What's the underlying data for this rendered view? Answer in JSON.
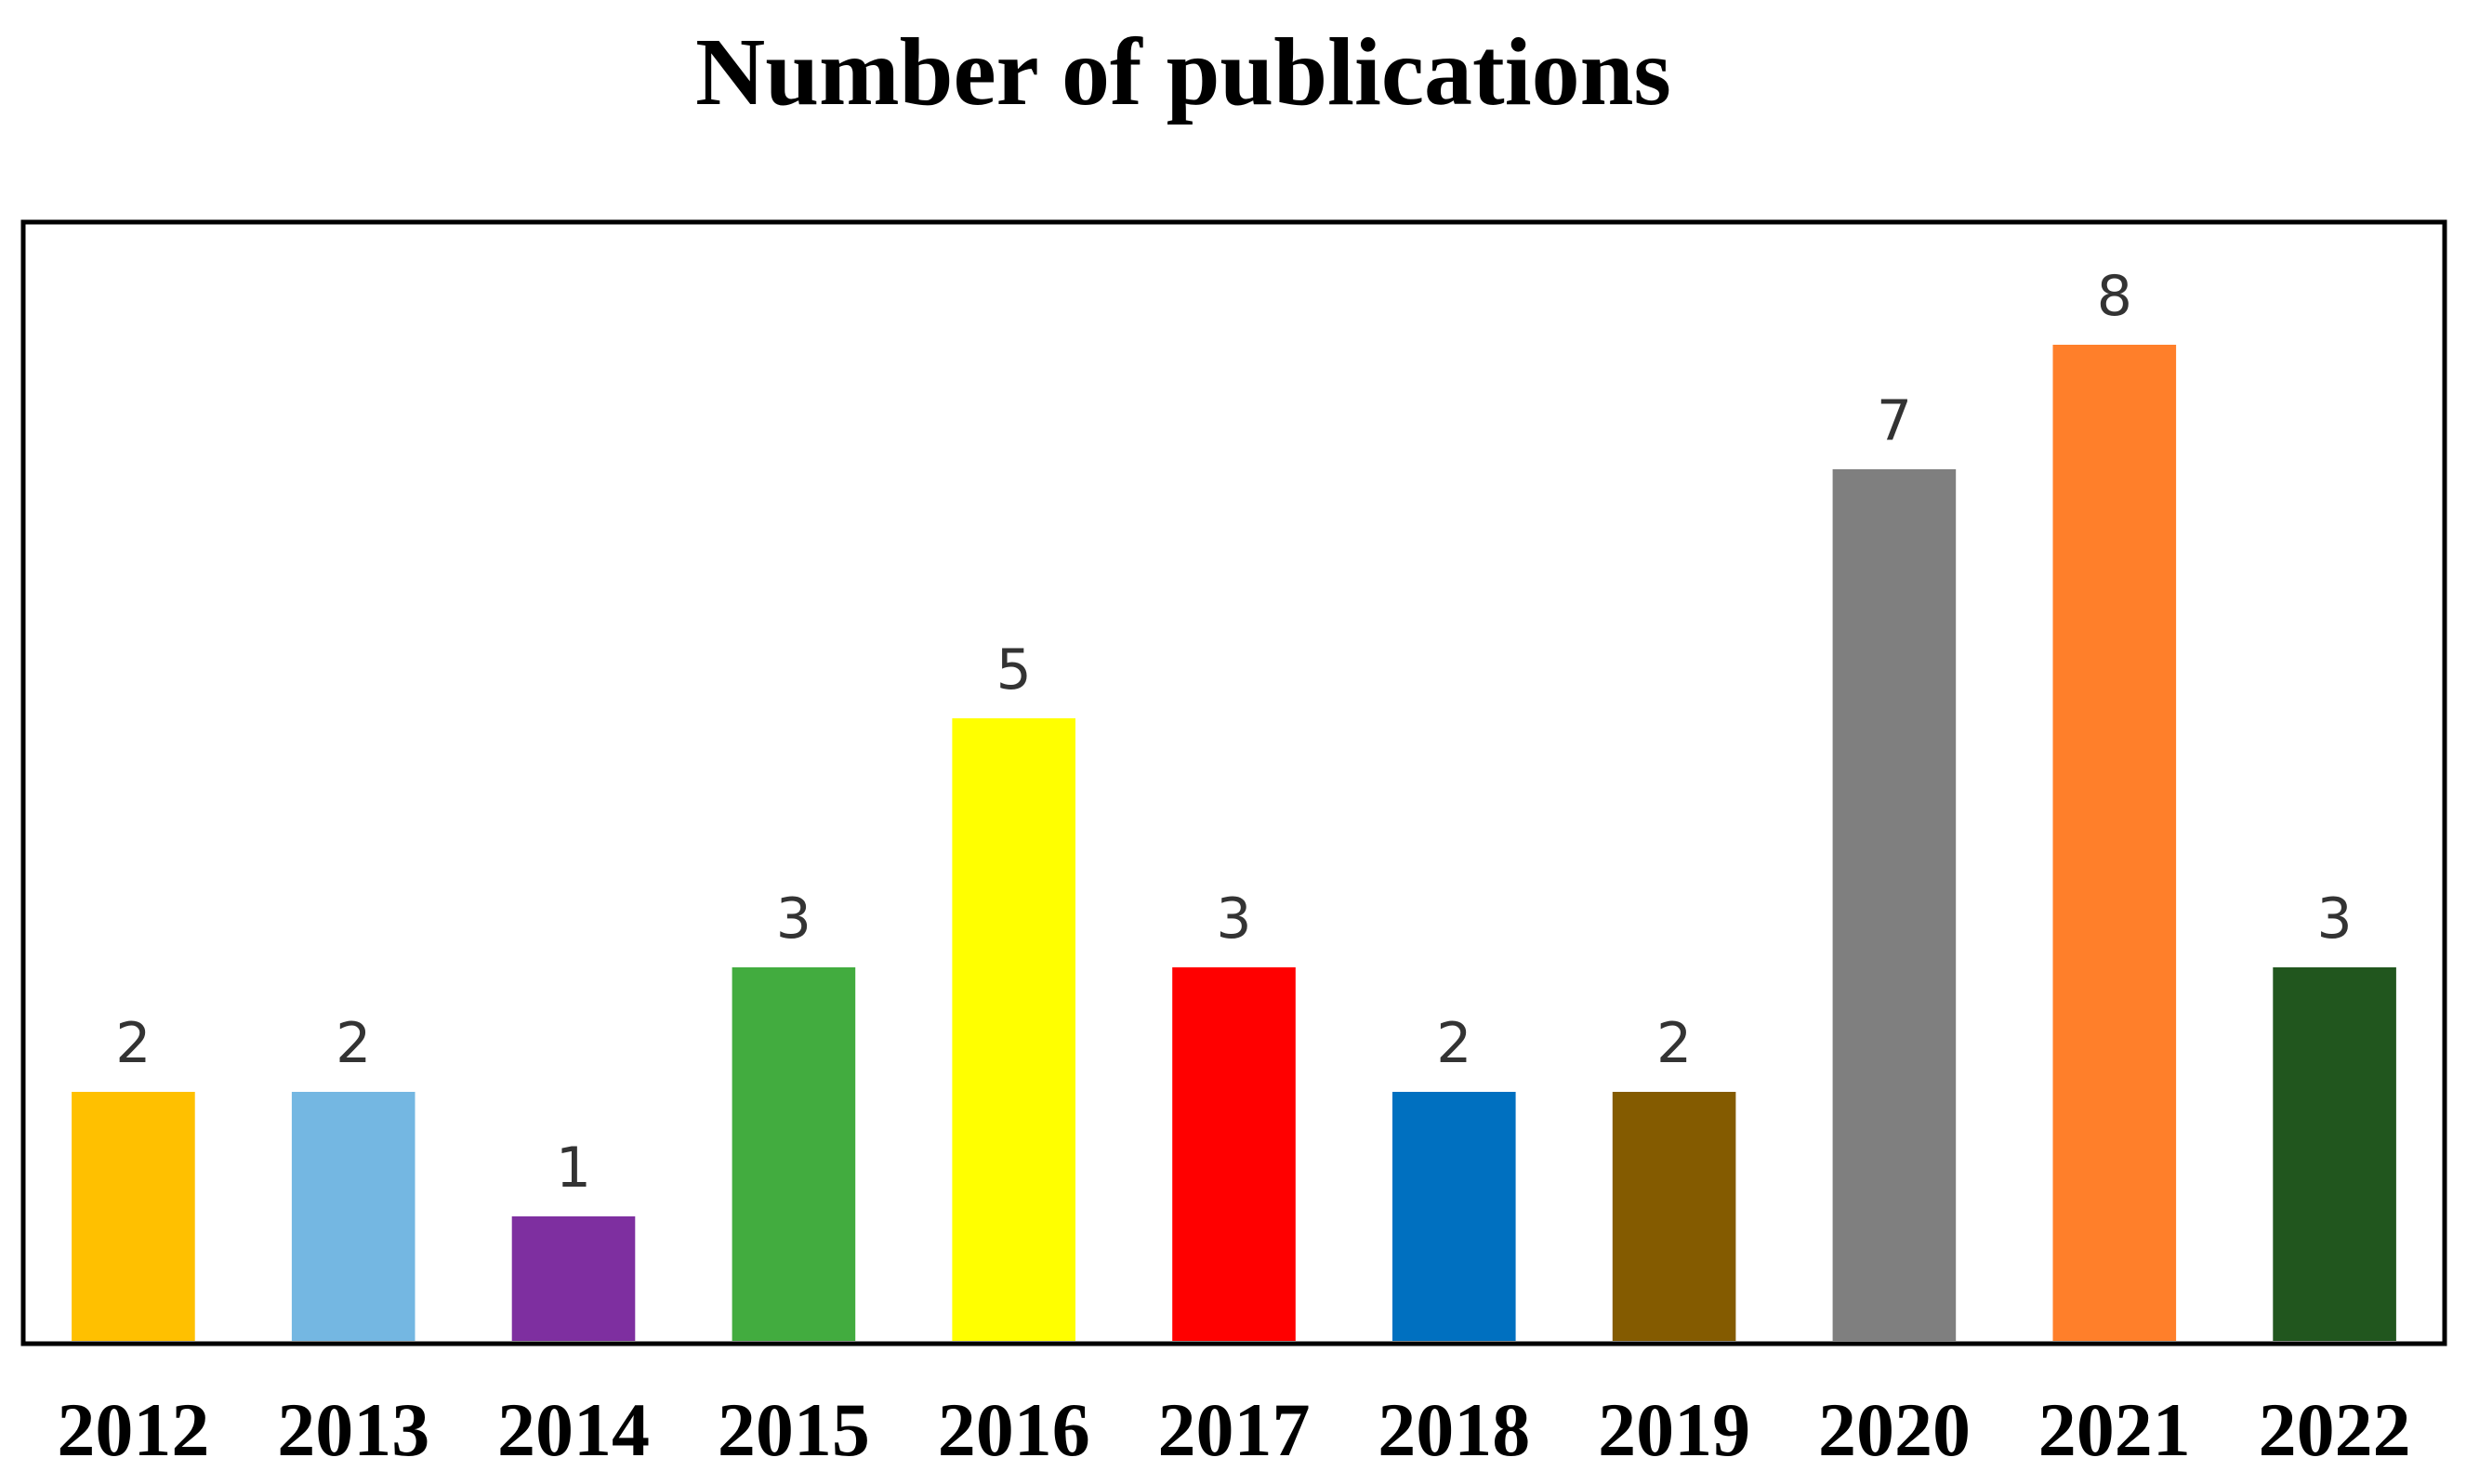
{
  "chart_data": {
    "type": "bar",
    "title": "Number of publications",
    "xlabel": "",
    "ylabel": "",
    "categories": [
      "2012",
      "2013",
      "2014",
      "2015",
      "2016",
      "2017",
      "2018",
      "2019",
      "2020",
      "2021",
      "2022"
    ],
    "values": [
      2,
      2,
      1,
      3,
      5,
      3,
      2,
      2,
      7,
      8,
      3
    ],
    "colors": [
      "#FFC000",
      "#74B7E2",
      "#7E2FA0",
      "#42AC3F",
      "#FFFF00",
      "#FF0000",
      "#0070C0",
      "#845B00",
      "#7F7F7F",
      "#FF7F2A",
      "#21561E"
    ],
    "ylim": [
      0,
      9
    ],
    "grid": false,
    "legend": "none",
    "data_labels": true
  }
}
